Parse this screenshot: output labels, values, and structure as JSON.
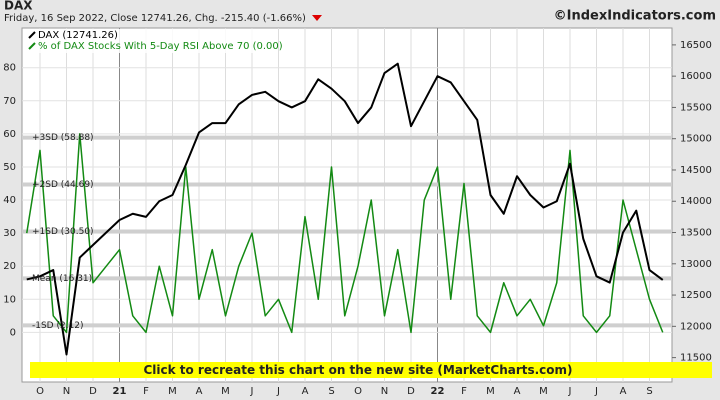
{
  "chart_data": {
    "type": "line",
    "title": "DAX",
    "subtitle": "Friday, 16 Sep 2022, Close 12741.26, Chg. -215.40 (-1.66%)",
    "source": "©IndexIndicators.com",
    "banner": "Click to recreate this chart on the new site (MarketCharts.com)",
    "categories": [
      null,
      "O",
      null,
      "N",
      null,
      "D",
      null,
      "21",
      null,
      "F",
      null,
      "M",
      null,
      "A",
      null,
      "M",
      null,
      "J",
      null,
      "J",
      null,
      "A",
      null,
      "S",
      null,
      "O",
      null,
      "N",
      null,
      "D",
      null,
      "22",
      null,
      "F",
      null,
      "M",
      null,
      "A",
      null,
      "M",
      null,
      "J",
      null,
      "J",
      null,
      "A",
      null,
      "S",
      null
    ],
    "series": [
      {
        "name": "DAX (12741.26)",
        "color": "#000000",
        "axis": "y2",
        "values": [
          12750,
          12800,
          12900,
          11550,
          13100,
          13300,
          13500,
          13700,
          13800,
          13750,
          14000,
          14100,
          14580,
          15100,
          15250,
          15250,
          15550,
          15700,
          15750,
          15600,
          15500,
          15600,
          15950,
          15800,
          15600,
          15250,
          15500,
          16050,
          16200,
          15200,
          15600,
          16000,
          15900,
          15600,
          15300,
          14100,
          13800,
          14400,
          14100,
          13900,
          14000,
          14600,
          13400,
          12800,
          12700,
          13500,
          13850,
          12900,
          12741.26
        ]
      },
      {
        "name": "% of DAX Stocks With 5-Day RSI Above 70 (0.00)",
        "color": "#138a13",
        "axis": "y",
        "values": [
          30,
          55,
          5,
          0,
          60,
          15,
          20,
          25,
          5,
          0,
          20,
          5,
          50,
          10,
          25,
          5,
          20,
          30,
          5,
          10,
          0,
          35,
          10,
          50,
          5,
          20,
          40,
          5,
          25,
          0,
          40,
          50,
          10,
          45,
          5,
          0,
          15,
          5,
          10,
          2,
          15,
          55,
          5,
          0,
          5,
          40,
          25,
          10,
          0
        ]
      }
    ],
    "ylim": [
      -15,
      92
    ],
    "yticks": [
      0,
      10,
      20,
      30,
      40,
      50,
      60,
      70,
      80
    ],
    "y2lim": [
      11110,
      16770
    ],
    "y2ticks": [
      11500,
      12000,
      12500,
      13000,
      13500,
      14000,
      14500,
      15000,
      15500,
      16000,
      16500
    ],
    "bands": [
      {
        "value": 58.88,
        "label": "+3SD (58.88)"
      },
      {
        "value": 44.69,
        "label": "+2SD (44.69)"
      },
      {
        "value": 30.5,
        "label": "+1SD (30.50)"
      },
      {
        "value": 16.31,
        "label": "Mean (16.31)"
      },
      {
        "value": 2.12,
        "label": "-1SD (2.12)"
      }
    ],
    "grid": true,
    "legend": "top-left"
  }
}
